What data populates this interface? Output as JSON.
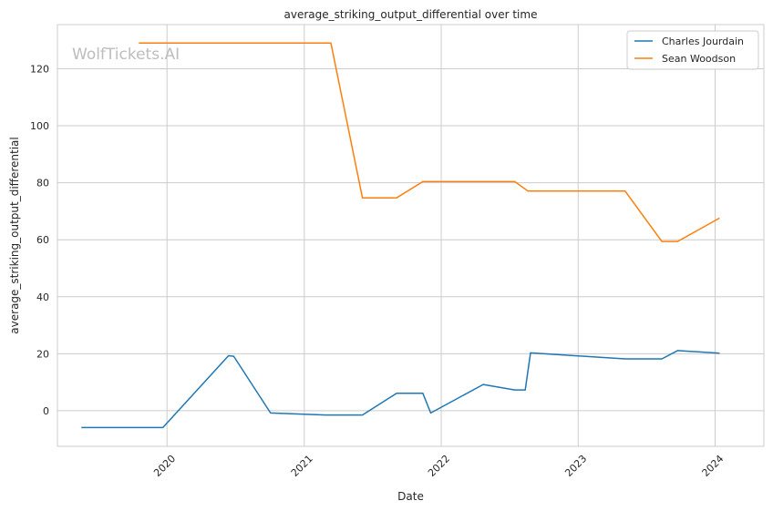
{
  "chart_data": {
    "type": "line",
    "title": "average_striking_output_differential over time",
    "xlabel": "Date",
    "ylabel": "average_striking_output_differential",
    "watermark": "WolfTickets.AI",
    "x_ticks": [
      "2020",
      "2021",
      "2022",
      "2023",
      "2024"
    ],
    "y_ticks": [
      "0",
      "20",
      "40",
      "60",
      "80",
      "100",
      "120"
    ],
    "xlim": [
      "2019-03-15",
      "2024-05-10"
    ],
    "ylim": [
      -12.5,
      135.5
    ],
    "grid": true,
    "legend_position": "top-right",
    "series": [
      {
        "name": "Charles Jourdain",
        "color": "#1f77b4",
        "points": [
          [
            "2019-05-18",
            -5.9
          ],
          [
            "2019-12-21",
            -5.9
          ],
          [
            "2020-06-13",
            19.3
          ],
          [
            "2020-06-27",
            19.1
          ],
          [
            "2020-10-03",
            -0.8
          ],
          [
            "2021-02-27",
            -1.5
          ],
          [
            "2021-06-05",
            -1.5
          ],
          [
            "2021-09-04",
            6.1
          ],
          [
            "2021-11-13",
            6.1
          ],
          [
            "2021-12-04",
            -0.8
          ],
          [
            "2022-04-23",
            9.2
          ],
          [
            "2022-07-16",
            7.3
          ],
          [
            "2022-08-13",
            7.3
          ],
          [
            "2022-08-27",
            20.3
          ],
          [
            "2023-05-06",
            18.2
          ],
          [
            "2023-08-12",
            18.2
          ],
          [
            "2023-09-23",
            21.1
          ],
          [
            "2024-01-13",
            20.2
          ]
        ]
      },
      {
        "name": "Sean Woodson",
        "color": "#ff7f0e",
        "points": [
          [
            "2019-10-18",
            129.0
          ],
          [
            "2021-03-13",
            129.0
          ],
          [
            "2021-06-05",
            74.7
          ],
          [
            "2021-09-04",
            74.7
          ],
          [
            "2021-11-13",
            80.4
          ],
          [
            "2022-07-16",
            80.4
          ],
          [
            "2022-08-20",
            77.1
          ],
          [
            "2023-05-06",
            77.1
          ],
          [
            "2023-08-12",
            59.4
          ],
          [
            "2023-09-23",
            59.4
          ],
          [
            "2024-01-13",
            67.6
          ]
        ]
      }
    ]
  }
}
